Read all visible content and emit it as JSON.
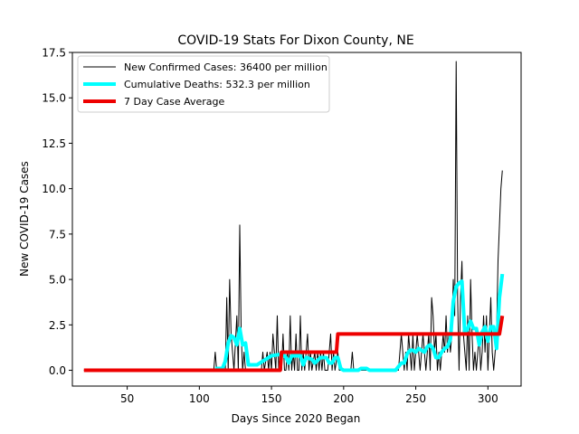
{
  "chart_data": {
    "type": "line",
    "title": "COVID-19 Stats For Dixon County, NE",
    "xlabel": "Days Since 2020 Began",
    "ylabel": "New COVID-19 Cases",
    "xlim": [
      12,
      323
    ],
    "ylim": [
      -0.87,
      17.5
    ],
    "xticks": [
      50,
      100,
      150,
      200,
      250,
      300
    ],
    "yticks": [
      0.0,
      2.5,
      5.0,
      7.5,
      10.0,
      12.5,
      15.0,
      17.5
    ],
    "xtick_labels": [
      "50",
      "100",
      "150",
      "200",
      "250",
      "300"
    ],
    "ytick_labels": [
      "0.0",
      "2.5",
      "5.0",
      "7.5",
      "10.0",
      "12.5",
      "15.0",
      "17.5"
    ],
    "grid": false,
    "legend_position": "top-left",
    "series": [
      {
        "name": "New Confirmed Cases: 36400 per million",
        "color": "#000000",
        "style": "thin",
        "points": [
          [
            20,
            0
          ],
          [
            110,
            0
          ],
          [
            111,
            1
          ],
          [
            112,
            0
          ],
          [
            118,
            0
          ],
          [
            119,
            4
          ],
          [
            120,
            0
          ],
          [
            121,
            5
          ],
          [
            122,
            2
          ],
          [
            123,
            1
          ],
          [
            124,
            0
          ],
          [
            126,
            3
          ],
          [
            127,
            0
          ],
          [
            128,
            8
          ],
          [
            129,
            2
          ],
          [
            130,
            0
          ],
          [
            131,
            1
          ],
          [
            132,
            0
          ],
          [
            140,
            0
          ],
          [
            143,
            0
          ],
          [
            144,
            1
          ],
          [
            145,
            0
          ],
          [
            147,
            1
          ],
          [
            148,
            0
          ],
          [
            149,
            1
          ],
          [
            150,
            0
          ],
          [
            151,
            2
          ],
          [
            152,
            1
          ],
          [
            153,
            0
          ],
          [
            154,
            3
          ],
          [
            155,
            0
          ],
          [
            156,
            1
          ],
          [
            157,
            0
          ],
          [
            158,
            2
          ],
          [
            159,
            0
          ],
          [
            160,
            0
          ],
          [
            161,
            1
          ],
          [
            162,
            0
          ],
          [
            163,
            3
          ],
          [
            164,
            0
          ],
          [
            165,
            1
          ],
          [
            166,
            0
          ],
          [
            167,
            2
          ],
          [
            168,
            0
          ],
          [
            169,
            0
          ],
          [
            170,
            3
          ],
          [
            171,
            0
          ],
          [
            172,
            1
          ],
          [
            173,
            0
          ],
          [
            175,
            2
          ],
          [
            176,
            0
          ],
          [
            177,
            1
          ],
          [
            178,
            0
          ],
          [
            180,
            1
          ],
          [
            181,
            0
          ],
          [
            182,
            1
          ],
          [
            183,
            0
          ],
          [
            184,
            1
          ],
          [
            185,
            0
          ],
          [
            186,
            1
          ],
          [
            187,
            0
          ],
          [
            189,
            0
          ],
          [
            190,
            1
          ],
          [
            191,
            2
          ],
          [
            192,
            0
          ],
          [
            193,
            1
          ],
          [
            194,
            0
          ],
          [
            196,
            1
          ],
          [
            197,
            0
          ],
          [
            205,
            0
          ],
          [
            206,
            1
          ],
          [
            207,
            0
          ],
          [
            230,
            0
          ],
          [
            238,
            0
          ],
          [
            240,
            2
          ],
          [
            241,
            1
          ],
          [
            242,
            0
          ],
          [
            243,
            1
          ],
          [
            244,
            0
          ],
          [
            245,
            2
          ],
          [
            246,
            1
          ],
          [
            247,
            0
          ],
          [
            248,
            2
          ],
          [
            249,
            0
          ],
          [
            250,
            1
          ],
          [
            251,
            2
          ],
          [
            252,
            1
          ],
          [
            253,
            0
          ],
          [
            254,
            1
          ],
          [
            255,
            2
          ],
          [
            256,
            1
          ],
          [
            257,
            0
          ],
          [
            258,
            1
          ],
          [
            259,
            2
          ],
          [
            260,
            0
          ],
          [
            261,
            4
          ],
          [
            262,
            3
          ],
          [
            263,
            1
          ],
          [
            264,
            2
          ],
          [
            265,
            0
          ],
          [
            266,
            1
          ],
          [
            267,
            0
          ],
          [
            268,
            1
          ],
          [
            269,
            2
          ],
          [
            270,
            1
          ],
          [
            271,
            3
          ],
          [
            272,
            1
          ],
          [
            273,
            2
          ],
          [
            274,
            1
          ],
          [
            275,
            2
          ],
          [
            276,
            5
          ],
          [
            277,
            3
          ],
          [
            278,
            17
          ],
          [
            279,
            4
          ],
          [
            280,
            0
          ],
          [
            281,
            4
          ],
          [
            282,
            6
          ],
          [
            283,
            2
          ],
          [
            284,
            1
          ],
          [
            285,
            0
          ],
          [
            286,
            3
          ],
          [
            287,
            0
          ],
          [
            288,
            5
          ],
          [
            289,
            2
          ],
          [
            290,
            0
          ],
          [
            291,
            1
          ],
          [
            292,
            0
          ],
          [
            293,
            1
          ],
          [
            294,
            2
          ],
          [
            295,
            0
          ],
          [
            296,
            1
          ],
          [
            297,
            3
          ],
          [
            298,
            1
          ],
          [
            299,
            3
          ],
          [
            300,
            0
          ],
          [
            301,
            2
          ],
          [
            302,
            4
          ],
          [
            303,
            1
          ],
          [
            304,
            0
          ],
          [
            305,
            1
          ],
          [
            306,
            2
          ],
          [
            307,
            6
          ],
          [
            308,
            8
          ],
          [
            309,
            10
          ],
          [
            310,
            11
          ]
        ]
      },
      {
        "name": "Cumulative Deaths: 532.3 per million",
        "color": "#00ffff",
        "style": "thick",
        "points": [
          [
            111,
            0.1
          ],
          [
            116,
            0.1
          ],
          [
            118,
            0.5
          ],
          [
            120,
            1.5
          ],
          [
            122,
            1.9
          ],
          [
            124,
            1.8
          ],
          [
            126,
            1.4
          ],
          [
            128,
            2.3
          ],
          [
            130,
            1.4
          ],
          [
            132,
            1.5
          ],
          [
            134,
            0.3
          ],
          [
            136,
            0.3
          ],
          [
            140,
            0.3
          ],
          [
            142,
            0.4
          ],
          [
            150,
            0.8
          ],
          [
            158,
            0.9
          ],
          [
            160,
            0.7
          ],
          [
            162,
            0.4
          ],
          [
            164,
            0.8
          ],
          [
            170,
            0.8
          ],
          [
            172,
            0.3
          ],
          [
            174,
            0.7
          ],
          [
            178,
            0.6
          ],
          [
            180,
            0.4
          ],
          [
            184,
            0.7
          ],
          [
            188,
            0.7
          ],
          [
            190,
            0.4
          ],
          [
            192,
            0.4
          ],
          [
            194,
            0.7
          ],
          [
            196,
            0.7
          ],
          [
            198,
            0.1
          ],
          [
            200,
            0
          ],
          [
            210,
            0
          ],
          [
            212,
            0.1
          ],
          [
            216,
            0.1
          ],
          [
            218,
            0
          ],
          [
            236,
            0
          ],
          [
            240,
            0.4
          ],
          [
            242,
            0.4
          ],
          [
            244,
            0.9
          ],
          [
            246,
            1.1
          ],
          [
            248,
            1.1
          ],
          [
            250,
            1.0
          ],
          [
            252,
            1.2
          ],
          [
            254,
            1.1
          ],
          [
            256,
            1.0
          ],
          [
            258,
            1.3
          ],
          [
            260,
            1.4
          ],
          [
            262,
            1.2
          ],
          [
            264,
            0.7
          ],
          [
            266,
            0.7
          ],
          [
            268,
            1.0
          ],
          [
            270,
            1.2
          ],
          [
            272,
            1.3
          ],
          [
            274,
            1.7
          ],
          [
            276,
            3.8
          ],
          [
            278,
            4.6
          ],
          [
            280,
            4.8
          ],
          [
            282,
            4.9
          ],
          [
            284,
            2.0
          ],
          [
            286,
            2.3
          ],
          [
            288,
            2.7
          ],
          [
            290,
            2.3
          ],
          [
            292,
            2.3
          ],
          [
            294,
            1.4
          ],
          [
            296,
            2.1
          ],
          [
            298,
            2.4
          ],
          [
            300,
            1.6
          ],
          [
            302,
            2.4
          ],
          [
            304,
            2.4
          ],
          [
            306,
            1.2
          ],
          [
            308,
            4.0
          ],
          [
            310,
            5.3
          ]
        ]
      },
      {
        "name": "7 Day Case Average",
        "color": "#ee0000",
        "style": "thick",
        "points": [
          [
            20,
            0
          ],
          [
            156,
            0
          ],
          [
            157,
            1
          ],
          [
            195,
            1
          ],
          [
            196,
            2
          ],
          [
            308,
            2
          ],
          [
            310,
            3
          ]
        ]
      }
    ]
  }
}
